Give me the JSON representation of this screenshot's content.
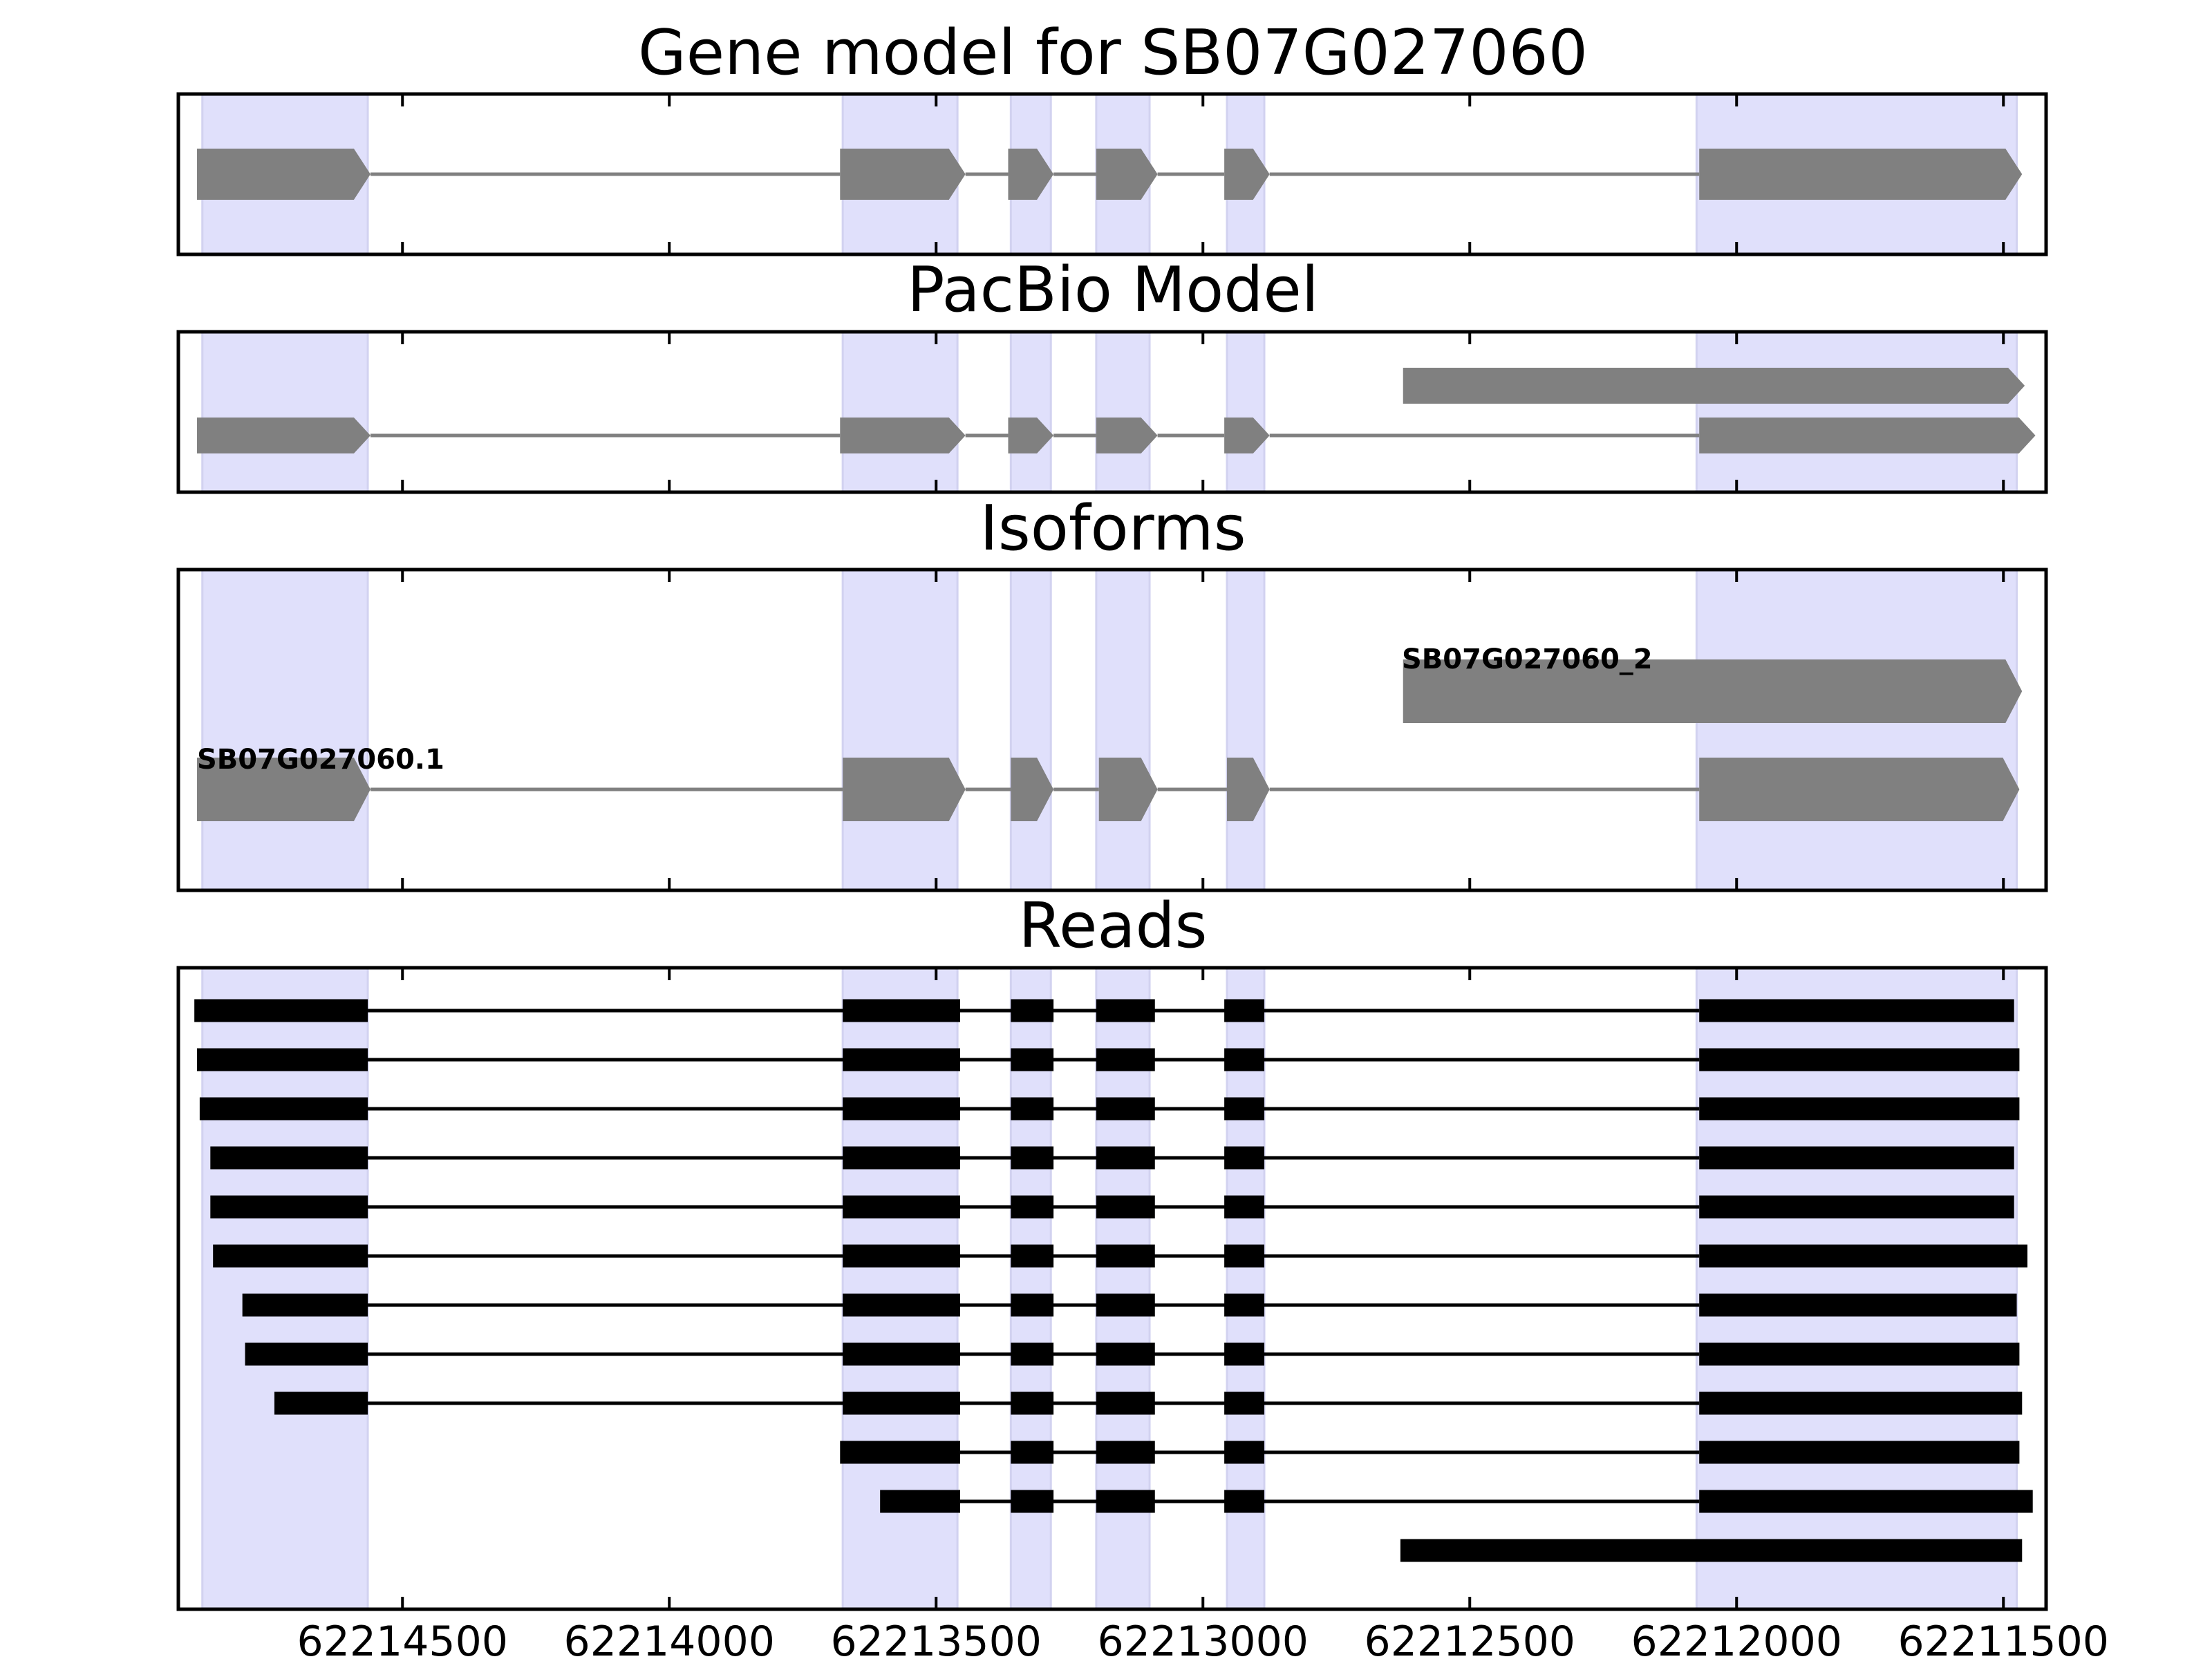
{
  "figure": {
    "titles": {
      "gene_model": "Gene model for SB07G027060",
      "pacbio": "PacBio Model",
      "isoforms": "Isoforms",
      "reads": "Reads"
    },
    "isoform_labels": [
      "SB07G027060.1",
      "SB07G027060_2"
    ],
    "colors": {
      "exon_highlight": "#e0e0fb",
      "feature_gray": "#808080",
      "read_black": "#000000",
      "frame": "#000000"
    }
  },
  "chart_data": {
    "type": "gene-structure",
    "x_axis": {
      "reversed": true,
      "xlim": [
        62214920,
        62211420
      ],
      "ticks": [
        62214500,
        62214000,
        62213500,
        62213000,
        62212500,
        62212000,
        62211500
      ],
      "tick_labels": [
        "62214500",
        "62214000",
        "62213500",
        "62213000",
        "62212500",
        "62212000",
        "62211500"
      ]
    },
    "exon_regions": [
      [
        62214875,
        62214565
      ],
      [
        62213675,
        62213460
      ],
      [
        62213360,
        62213285
      ],
      [
        62213200,
        62213100
      ],
      [
        62212955,
        62212885
      ],
      [
        62212075,
        62211475
      ]
    ],
    "gene_model": [
      {
        "name": "SB07G027060",
        "strand": "-",
        "exons": [
          [
            62214885,
            62214560
          ],
          [
            62213680,
            62213445
          ],
          [
            62213365,
            62213280
          ],
          [
            62213200,
            62213085
          ],
          [
            62212960,
            62212875
          ],
          [
            62212070,
            62211465
          ]
        ]
      }
    ],
    "pacbio_model": [
      {
        "strand": "-",
        "exons": [
          [
            62212625,
            62211460
          ]
        ]
      },
      {
        "strand": "-",
        "exons": [
          [
            62214885,
            62214560
          ],
          [
            62213680,
            62213445
          ],
          [
            62213365,
            62213280
          ],
          [
            62213200,
            62213085
          ],
          [
            62212960,
            62212875
          ],
          [
            62212070,
            62211440
          ]
        ]
      }
    ],
    "isoforms": [
      {
        "label": "SB07G027060_2",
        "strand": "-",
        "exons": [
          [
            62212625,
            62211465
          ]
        ]
      },
      {
        "label": "SB07G027060.1",
        "strand": "-",
        "exons": [
          [
            62214885,
            62214560
          ],
          [
            62213675,
            62213445
          ],
          [
            62213360,
            62213280
          ],
          [
            62213195,
            62213085
          ],
          [
            62212955,
            62212875
          ],
          [
            62212070,
            62211470
          ]
        ]
      }
    ],
    "reads": [
      [
        [
          62214890,
          62214565
        ],
        [
          62213675,
          62213455
        ],
        [
          62213360,
          62213280
        ],
        [
          62213200,
          62213090
        ],
        [
          62212960,
          62212885
        ],
        [
          62212070,
          62211480
        ]
      ],
      [
        [
          62214885,
          62214565
        ],
        [
          62213675,
          62213455
        ],
        [
          62213360,
          62213280
        ],
        [
          62213200,
          62213090
        ],
        [
          62212960,
          62212885
        ],
        [
          62212070,
          62211470
        ]
      ],
      [
        [
          62214880,
          62214565
        ],
        [
          62213675,
          62213455
        ],
        [
          62213360,
          62213280
        ],
        [
          62213200,
          62213090
        ],
        [
          62212960,
          62212885
        ],
        [
          62212070,
          62211470
        ]
      ],
      [
        [
          62214860,
          62214565
        ],
        [
          62213675,
          62213455
        ],
        [
          62213360,
          62213280
        ],
        [
          62213200,
          62213090
        ],
        [
          62212960,
          62212885
        ],
        [
          62212070,
          62211480
        ]
      ],
      [
        [
          62214860,
          62214565
        ],
        [
          62213675,
          62213455
        ],
        [
          62213360,
          62213280
        ],
        [
          62213200,
          62213090
        ],
        [
          62212960,
          62212885
        ],
        [
          62212070,
          62211480
        ]
      ],
      [
        [
          62214855,
          62214565
        ],
        [
          62213675,
          62213455
        ],
        [
          62213360,
          62213280
        ],
        [
          62213200,
          62213090
        ],
        [
          62212960,
          62212885
        ],
        [
          62212070,
          62211455
        ]
      ],
      [
        [
          62214800,
          62214565
        ],
        [
          62213675,
          62213455
        ],
        [
          62213360,
          62213280
        ],
        [
          62213200,
          62213090
        ],
        [
          62212960,
          62212885
        ],
        [
          62212070,
          62211475
        ]
      ],
      [
        [
          62214795,
          62214565
        ],
        [
          62213675,
          62213455
        ],
        [
          62213360,
          62213280
        ],
        [
          62213200,
          62213090
        ],
        [
          62212960,
          62212885
        ],
        [
          62212070,
          62211470
        ]
      ],
      [
        [
          62214740,
          62214565
        ],
        [
          62213675,
          62213455
        ],
        [
          62213360,
          62213280
        ],
        [
          62213200,
          62213090
        ],
        [
          62212960,
          62212885
        ],
        [
          62212070,
          62211465
        ]
      ],
      [
        [
          62213680,
          62213455
        ],
        [
          62213360,
          62213280
        ],
        [
          62213200,
          62213090
        ],
        [
          62212960,
          62212885
        ],
        [
          62212070,
          62211470
        ]
      ],
      [
        [
          62213605,
          62213455
        ],
        [
          62213360,
          62213280
        ],
        [
          62213200,
          62213090
        ],
        [
          62212960,
          62212885
        ],
        [
          62212070,
          62211445
        ]
      ],
      [
        [
          62212630,
          62211465
        ]
      ]
    ]
  }
}
